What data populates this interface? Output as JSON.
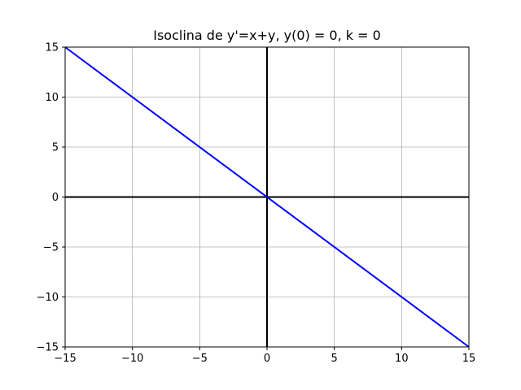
{
  "chart_data": {
    "type": "line",
    "title": "Isoclina de y'=x+y, y(0) = 0, k = 0",
    "xlabel": "",
    "ylabel": "",
    "xlim": [
      -15,
      15
    ],
    "ylim": [
      -15,
      15
    ],
    "grid": true,
    "x_ticks": [
      -15,
      -10,
      -5,
      0,
      5,
      10,
      15
    ],
    "y_ticks": [
      -15,
      -10,
      -5,
      0,
      5,
      10,
      15
    ],
    "x_tick_labels": [
      "−15",
      "−10",
      "−5",
      "0",
      "5",
      "10",
      "15"
    ],
    "y_tick_labels": [
      "−15",
      "−10",
      "−5",
      "0",
      "5",
      "10",
      "15"
    ],
    "axis_lines": {
      "x_axis_at": 0,
      "y_axis_at": 0,
      "color": "#000000"
    },
    "series": [
      {
        "color": "#0000ff",
        "x": [
          -15,
          15
        ],
        "y": [
          15,
          -15
        ]
      }
    ]
  }
}
